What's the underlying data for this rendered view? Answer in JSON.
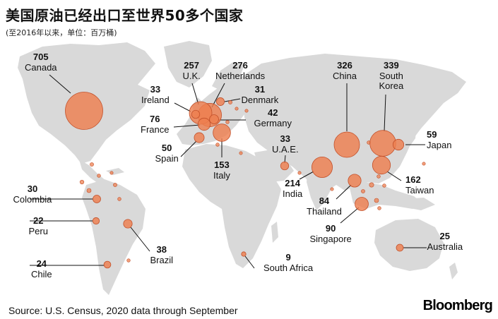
{
  "title": "美国原油已经出口至世界50多个国家",
  "subtitle": "(至2016年以来，单位：百万桶)",
  "source": "Source: U.S. Census, 2020 data through September",
  "brand": "Bloomberg",
  "colors": {
    "land": "#d9d9d9",
    "bubble_fill": "#ee7f4f",
    "bubble_stroke": "#c2502a",
    "leader": "#111111",
    "text": "#111111"
  },
  "chart_data": {
    "type": "bubble-map",
    "unit": "million barrels",
    "countries": [
      {
        "name": "Canada",
        "value": 705
      },
      {
        "name": "U.K.",
        "value": 257
      },
      {
        "name": "Netherlands",
        "value": 276
      },
      {
        "name": "Ireland",
        "value": 33
      },
      {
        "name": "Denmark",
        "value": 31
      },
      {
        "name": "Germany",
        "value": 42
      },
      {
        "name": "France",
        "value": 76
      },
      {
        "name": "Spain",
        "value": 50
      },
      {
        "name": "Italy",
        "value": 153
      },
      {
        "name": "U.A.E.",
        "value": 33
      },
      {
        "name": "China",
        "value": 326
      },
      {
        "name": "South Korea",
        "value": 339
      },
      {
        "name": "Japan",
        "value": 59
      },
      {
        "name": "Taiwan",
        "value": 162
      },
      {
        "name": "India",
        "value": 214
      },
      {
        "name": "Thailand",
        "value": 84
      },
      {
        "name": "Singapore",
        "value": 90
      },
      {
        "name": "Colombia",
        "value": 30
      },
      {
        "name": "Peru",
        "value": 22
      },
      {
        "name": "Brazil",
        "value": 38
      },
      {
        "name": "Chile",
        "value": 24
      },
      {
        "name": "South Africa",
        "value": 9
      },
      {
        "name": "Australia",
        "value": 25
      }
    ]
  }
}
